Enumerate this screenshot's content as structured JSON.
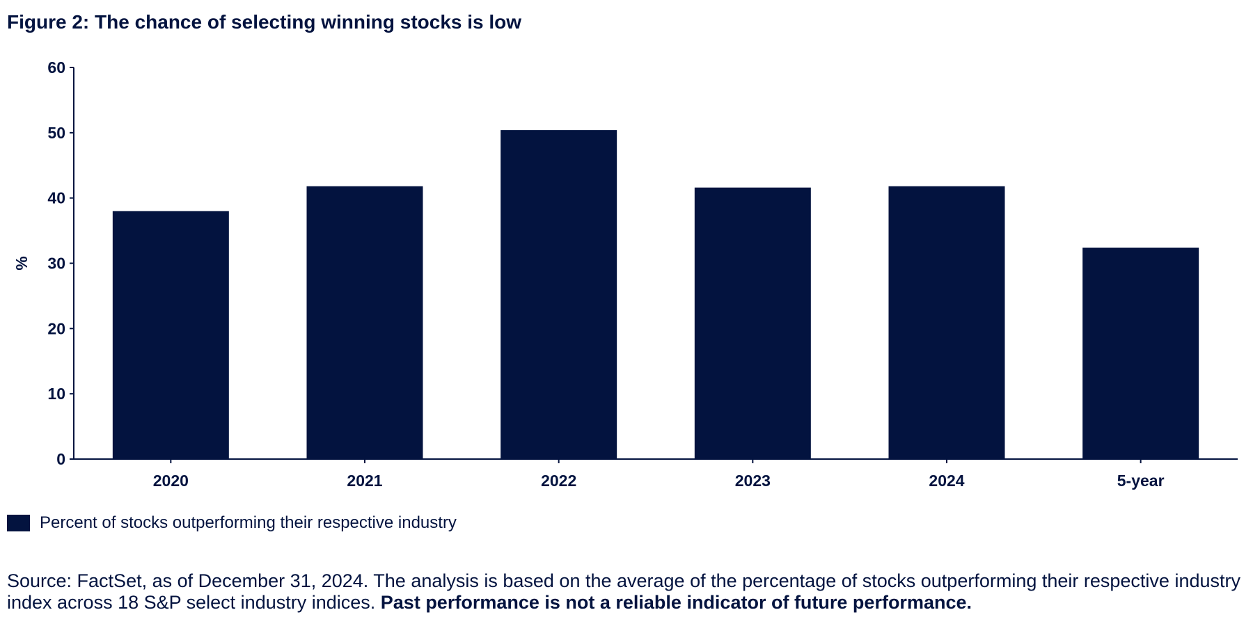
{
  "title": "Figure 2: The chance of selecting winning stocks is low",
  "colors": {
    "bar": "#03133f",
    "axis": "#03133f",
    "text": "#03133f"
  },
  "chart_data": {
    "type": "bar",
    "categories": [
      "2020",
      "2021",
      "2022",
      "2023",
      "2024",
      "5-year"
    ],
    "series": [
      {
        "name": "Percent of stocks outperforming their respective industry",
        "values": [
          38.0,
          41.8,
          50.4,
          41.6,
          41.8,
          32.4
        ]
      }
    ],
    "xlabel": "",
    "ylabel": "%",
    "ylim": [
      0,
      60
    ],
    "yticks": [
      "0",
      "10",
      "20",
      "30",
      "40",
      "50",
      "60"
    ],
    "grid": false,
    "legend_position": "bottom-left"
  },
  "legend": {
    "label": "Percent of stocks outperforming their respective industry"
  },
  "source": {
    "text": "Source: FactSet, as of December 31, 2024. The analysis is based on the average of the percentage of stocks outperforming their respective industry index across 18 S&P select industry indices. ",
    "bold_text": "Past performance is not a reliable indicator of future performance."
  }
}
